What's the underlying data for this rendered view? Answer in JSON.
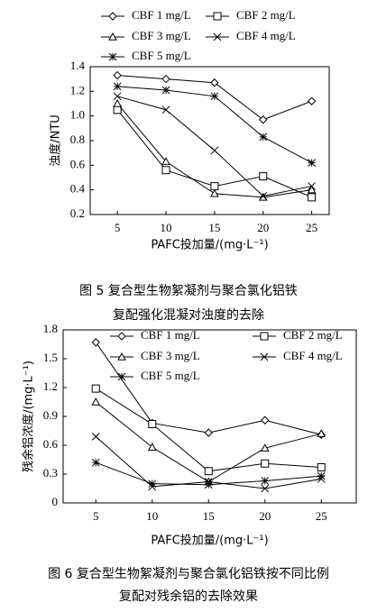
{
  "chart_data": [
    {
      "type": "line",
      "caption": [
        "图 5  复合型生物絮凝剂与聚合氯化铝铁",
        "复配强化混凝对浊度的去除"
      ],
      "x_label": "PAFC投加量/(mg·L⁻¹)",
      "y_label": "浊度/NTU",
      "x": [
        5,
        10,
        15,
        20,
        25
      ],
      "xlim": [
        2.2,
        26.8
      ],
      "xticks": [
        5,
        10,
        15,
        20,
        25
      ],
      "ylim": [
        0.2,
        1.4
      ],
      "yticks": [
        0.2,
        0.4,
        0.6,
        0.8,
        {
          "value": 1,
          "label": "1.0"
        },
        1.2,
        1.4
      ],
      "legend": "top",
      "series": [
        {
          "name": "CBF 1 mg/L",
          "color": "#000000",
          "marker": "diamond",
          "values": [
            1.33,
            1.3,
            1.27,
            0.97,
            1.12
          ]
        },
        {
          "name": "CBF 2 mg/L",
          "color": "#000000",
          "marker": "square",
          "values": [
            1.05,
            0.56,
            0.43,
            0.51,
            0.34
          ]
        },
        {
          "name": "CBF 3 mg/L",
          "color": "#000000",
          "marker": "triangle",
          "values": [
            1.1,
            0.63,
            0.37,
            0.34,
            0.4
          ]
        },
        {
          "name": "CBF 4 mg/L",
          "color": "#000000",
          "marker": "x",
          "values": [
            1.16,
            1.05,
            0.72,
            0.35,
            0.43
          ]
        },
        {
          "name": "CBF 5 mg/L",
          "color": "#000000",
          "marker": "asterisk",
          "values": [
            1.24,
            1.21,
            1.16,
            0.83,
            0.62
          ]
        }
      ]
    },
    {
      "type": "line",
      "caption": [
        "图 6  复合型生物絮凝剂与聚合氯化铝铁按不同比例",
        "复配对残余铝的去除效果"
      ],
      "x_label": "PAFC投加量/(mg·L⁻¹)",
      "y_label": "残余铝浓度/(mg·L⁻¹)",
      "x": [
        5,
        10,
        15,
        20,
        25
      ],
      "xlim": [
        2.1,
        28.1
      ],
      "xticks": [
        5,
        10,
        15,
        20,
        25
      ],
      "ylim": [
        0,
        1.8
      ],
      "yticks": [
        0,
        0.3,
        0.6,
        0.9,
        1.2,
        1.5,
        1.8
      ],
      "legend": "inside-top",
      "series": [
        {
          "name": "CBF 1 mg/L",
          "color": "#000000",
          "marker": "diamond",
          "values": [
            1.67,
            0.83,
            0.73,
            0.86,
            0.71
          ]
        },
        {
          "name": "CBF 2 mg/L",
          "color": "#000000",
          "marker": "square",
          "values": [
            1.19,
            0.82,
            0.33,
            0.41,
            0.37
          ]
        },
        {
          "name": "CBF 3 mg/L",
          "color": "#000000",
          "marker": "triangle",
          "values": [
            1.05,
            0.58,
            0.22,
            0.57,
            0.72
          ]
        },
        {
          "name": "CBF 4 mg/L",
          "color": "#000000",
          "marker": "x",
          "values": [
            0.69,
            0.17,
            0.22,
            0.15,
            0.25
          ]
        },
        {
          "name": "CBF 5 mg/L",
          "color": "#000000",
          "marker": "asterisk",
          "values": [
            0.42,
            0.2,
            0.19,
            0.23,
            0.28
          ]
        }
      ]
    }
  ]
}
